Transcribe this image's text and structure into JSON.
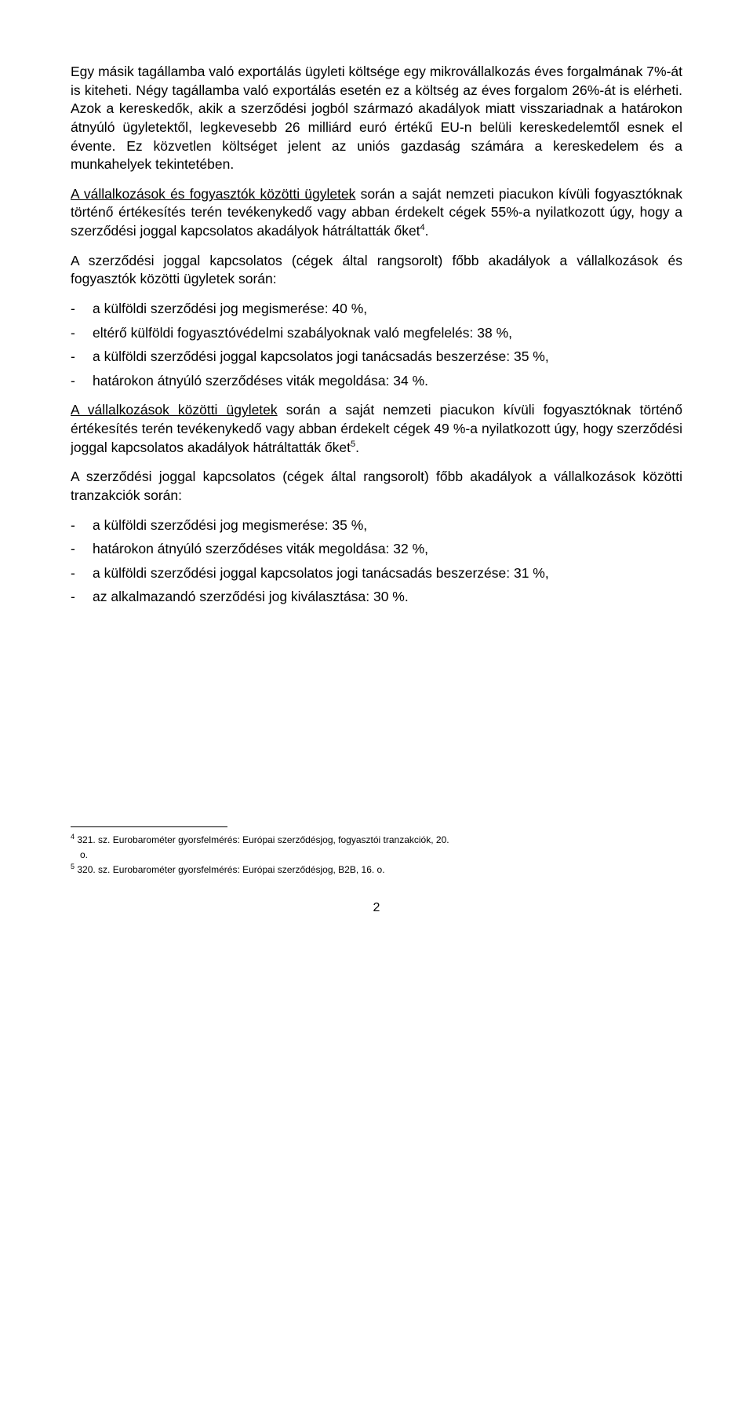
{
  "para1": {
    "part1": "Egy másik tagállamba való exportálás ügyleti költsége egy mikrovállalkozás éves forgalmának 7%-át is kiteheti. Négy tagállamba való exportálás esetén ez a költség az éves forgalom 26%-át is elérheti. Azok a kereskedők, akik a szerződési jogból származó akadályok miatt visszariadnak a határokon átnyúló ügyletektől, legkevesebb 26 milliárd euró értékű EU-n belüli kereskedelemtől esnek el évente. Ez közvetlen költséget jelent az uniós gazdaság számára a kereskedelem és a munkahelyek tekintetében."
  },
  "para2": {
    "underlined": "A vállalkozások és fogyasztók közötti ügyletek",
    "rest": " során a saját nemzeti piacukon kívüli fogyasztóknak történő értékesítés terén tevékenykedő vagy abban érdekelt cégek 55%-a nyilatkozott úgy, hogy a szerződési joggal kapcsolatos akadályok hátráltatták őket",
    "ref": "4",
    "period": "."
  },
  "para3": "A szerződési joggal kapcsolatos (cégek által rangsorolt) főbb akadályok a vállalkozások és fogyasztók közötti ügyletek során:",
  "list1": {
    "item1": "a külföldi szerződési jog megismerése: 40 %,",
    "item2": "eltérő külföldi fogyasztóvédelmi szabályoknak való megfelelés: 38 %,",
    "item3": "a külföldi szerződési joggal kapcsolatos jogi tanácsadás beszerzése: 35 %,",
    "item4": "határokon átnyúló szerződéses viták megoldása: 34 %."
  },
  "para4": {
    "underlined": "A vállalkozások közötti ügyletek",
    "rest": " során a saját nemzeti piacukon kívüli fogyasztóknak történő értékesítés terén tevékenykedő vagy abban érdekelt cégek 49 %-a nyilatkozott úgy, hogy szerződési joggal kapcsolatos akadályok hátráltatták őket",
    "ref": "5",
    "period": "."
  },
  "para5": "A szerződési joggal kapcsolatos (cégek által rangsorolt) főbb akadályok a vállalkozások közötti tranzakciók során:",
  "list2": {
    "item1": "a külföldi szerződési jog megismerése: 35 %,",
    "item2": "határokon átnyúló szerződéses viták megoldása: 32 %,",
    "item3": "a külföldi szerződési joggal kapcsolatos jogi tanácsadás beszerzése: 31 %,",
    "item4": "az alkalmazandó szerződési jog kiválasztása: 30 %."
  },
  "footnotes": {
    "fn4_ref": "4",
    "fn4_text": " 321. sz. Eurobarométer gyorsfelmérés: Európai szerződésjog, fogyasztói tranzakciók, 20.",
    "fn4_text2": "o.",
    "fn5_ref": "5",
    "fn5_text": " 320. sz. Eurobarométer gyorsfelmérés: Európai szerződésjog, B2B, 16. o."
  },
  "page_number": "2"
}
